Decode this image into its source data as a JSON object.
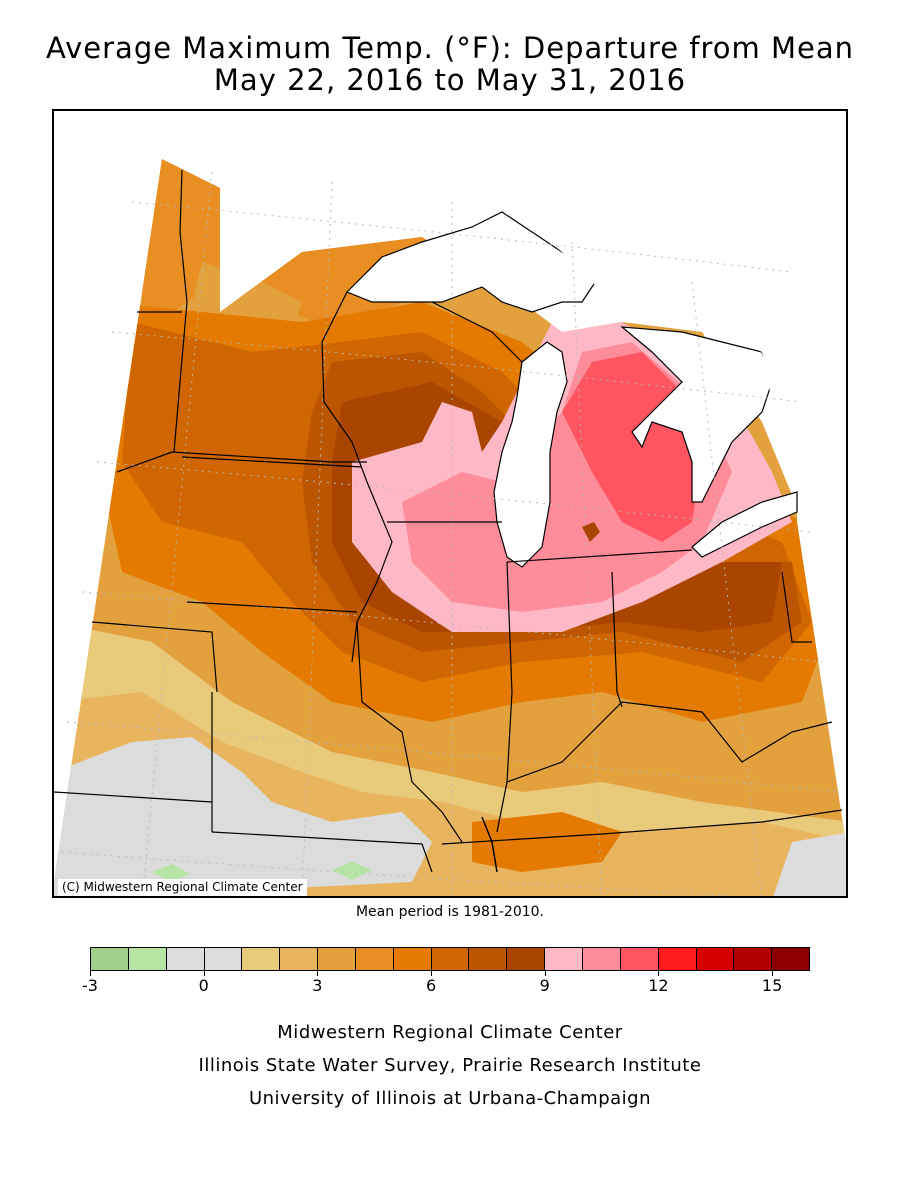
{
  "title": {
    "line1": "Average Maximum Temp. (°F): Departure from Mean",
    "line2": "May 22, 2016 to May 31, 2016"
  },
  "map": {
    "credit": "(C) Midwestern Regional Climate Center",
    "mean_period": "Mean period is 1981-2010.",
    "colors": {
      "lake": "#ffffff",
      "out_of_domain": "#ffffff",
      "borders": "#000000",
      "gridlines": "#b8b8b8"
    }
  },
  "legend": {
    "colors": [
      "#a0d08a",
      "#b6e4a3",
      "#dcdcdc",
      "#dcdcdc",
      "#e9c97a",
      "#e8b45e",
      "#e3a13d",
      "#e88e22",
      "#e47a00",
      "#d06600",
      "#bb5500",
      "#aa4500",
      "#ffb9c6",
      "#ff8c99",
      "#ff5560",
      "#ff1a1e",
      "#d70000",
      "#b40000",
      "#8c0000"
    ],
    "tick_values": [
      "-3",
      "0",
      "3",
      "6",
      "9",
      "12",
      "15"
    ],
    "units": "°F"
  },
  "footer": {
    "line1": "Midwestern Regional Climate Center",
    "line2": "Illinois State Water Survey, Prairie Research Institute",
    "line3": "University of Illinois at Urbana-Champaign"
  }
}
